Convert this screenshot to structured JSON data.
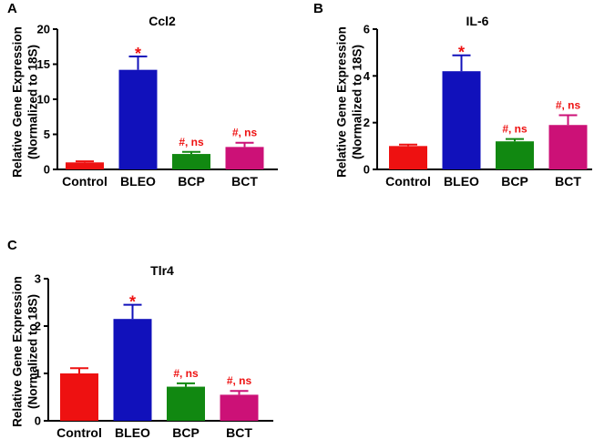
{
  "chart_data": [
    {
      "panel": "A",
      "type": "bar",
      "title": "Ccl2",
      "ylabel": [
        "Relative Gene Expression",
        "(Normalized to 18S)"
      ],
      "xlabel": "",
      "categories": [
        "Control",
        "BLEO",
        "BCP",
        "BCT"
      ],
      "values": [
        1.0,
        14.2,
        2.2,
        3.2
      ],
      "errors": [
        0.15,
        1.9,
        0.3,
        0.6
      ],
      "annotations": [
        "",
        "*",
        "#, ns",
        "#, ns"
      ],
      "ylim": [
        0,
        20
      ],
      "yticks": [
        0,
        5,
        10,
        15,
        20
      ],
      "colors": [
        "#ee1111",
        "#1111bb",
        "#118811",
        "#cc1177"
      ]
    },
    {
      "panel": "B",
      "type": "bar",
      "title": "IL-6",
      "ylabel": [
        "Relative Gene Expression",
        "(Normalized to 18S)"
      ],
      "xlabel": "",
      "categories": [
        "Control",
        "BLEO",
        "BCP",
        "BCT"
      ],
      "values": [
        1.0,
        4.2,
        1.2,
        1.9
      ],
      "errors": [
        0.06,
        0.68,
        0.1,
        0.42
      ],
      "annotations": [
        "",
        "*",
        "#, ns",
        "#, ns"
      ],
      "ylim": [
        0,
        6
      ],
      "yticks": [
        0,
        2,
        4,
        6
      ],
      "colors": [
        "#ee1111",
        "#1111bb",
        "#118811",
        "#cc1177"
      ]
    },
    {
      "panel": "C",
      "type": "bar",
      "title": "Tlr4",
      "ylabel": [
        "Relative Gene Expression",
        "(Normalized to 18S)"
      ],
      "xlabel": "",
      "categories": [
        "Control",
        "BLEO",
        "BCP",
        "BCT"
      ],
      "values": [
        1.0,
        2.15,
        0.72,
        0.55
      ],
      "errors": [
        0.11,
        0.3,
        0.07,
        0.08
      ],
      "annotations": [
        "",
        "*",
        "#, ns",
        "#, ns"
      ],
      "ylim": [
        0,
        3
      ],
      "yticks": [
        0,
        1,
        2,
        3
      ],
      "colors": [
        "#ee1111",
        "#1111bb",
        "#118811",
        "#cc1177"
      ]
    }
  ],
  "annotation_colors": {
    "star": "#ee1111",
    "hash": "#ee1111"
  }
}
